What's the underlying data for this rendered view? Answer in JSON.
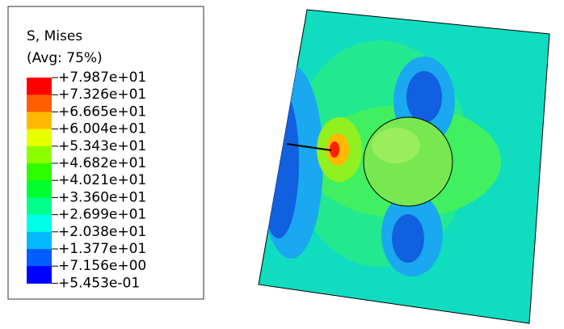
{
  "legend": {
    "title": "S, Mises",
    "subtitle": "(Avg: 75%)",
    "labels": [
      "+7.987e+01",
      "+7.326e+01",
      "+6.665e+01",
      "+6.004e+01",
      "+5.343e+01",
      "+4.682e+01",
      "+4.021e+01",
      "+3.360e+01",
      "+2.699e+01",
      "+2.038e+01",
      "+1.377e+01",
      "+7.156e+00",
      "+5.453e-01"
    ],
    "colors": [
      "#ff0000",
      "#ff5d00",
      "#ffb900",
      "#e8ff00",
      "#8bff00",
      "#2eff00",
      "#00ff2e",
      "#00ff8b",
      "#00ffe8",
      "#00b9ff",
      "#005dff",
      "#0000ff"
    ]
  }
}
